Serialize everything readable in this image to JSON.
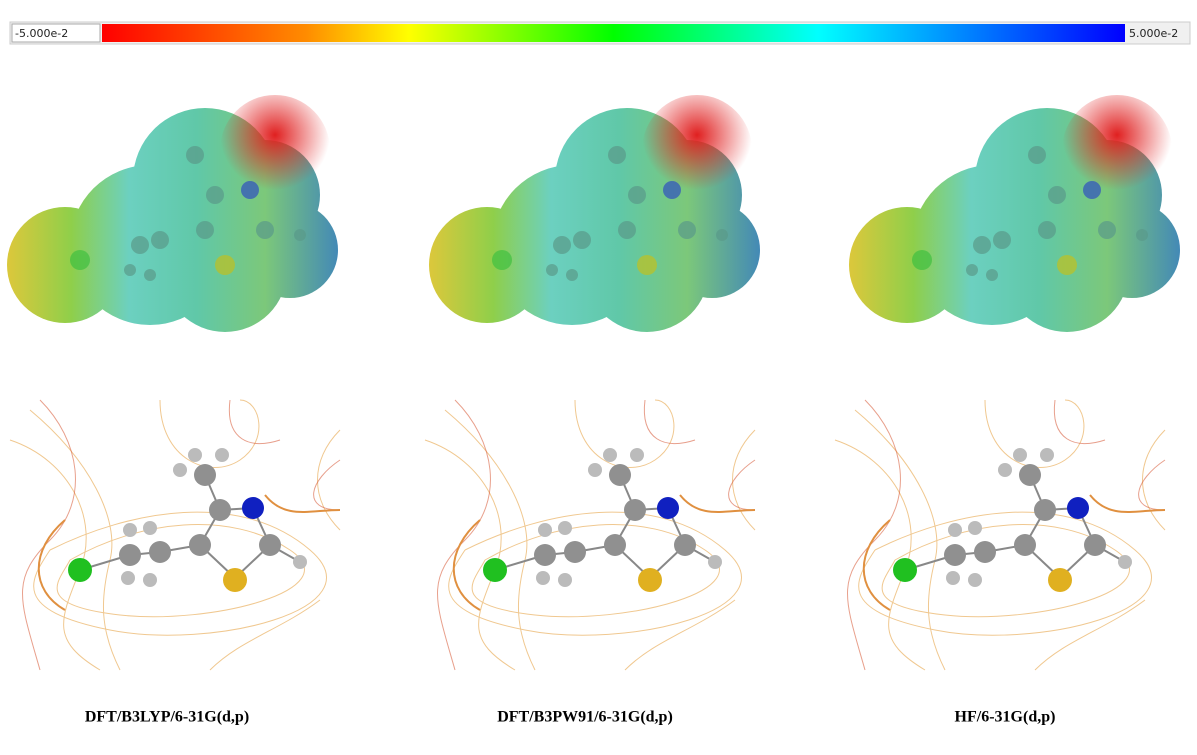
{
  "color_bar": {
    "min_label": "-5.000e-2",
    "max_label": "5.000e-2"
  },
  "panels": [
    {
      "label": "DFT/B3LYP/6-31G(d,p)"
    },
    {
      "label": "DFT/B3PW91/6-31G(d,p)"
    },
    {
      "label": "HF/6-31G(d,p)"
    }
  ]
}
